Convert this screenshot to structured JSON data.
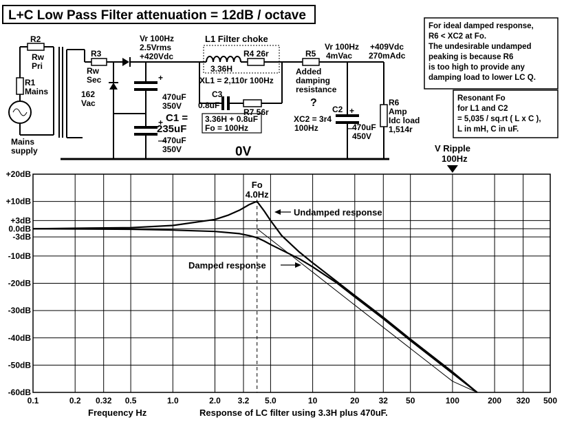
{
  "title": "L+C Low Pass Filter attenuation = 12dB / octave",
  "schematic": {
    "r2_name": "R2",
    "r2_line1": "Rw",
    "r2_line2": "Pri",
    "r1_name": "R1",
    "r1_label": "Mains",
    "supply_line1": "Mains",
    "supply_line2": "supply",
    "r3_name": "R3",
    "r3_line1": "Rw",
    "r3_line2": "Sec",
    "sec_voltage_line1": "162",
    "sec_voltage_line2": "Vac",
    "vr1_line1": "Vr 100Hz",
    "vr1_line2": "2.5Vrms",
    "vr1_line3": "+420Vdc",
    "cap_a_line1": "470uF",
    "cap_a_line2": "350V",
    "c1_line1": "C1 =",
    "c1_line2": "235uF",
    "cap_b_line1": "470uF",
    "cap_b_line2": "350V",
    "l1_label": "L1 Filter choke",
    "r4_label": "R4 26r",
    "l1_value": "3.36H",
    "xl1_label": "XL1 = 2,110r 100Hz",
    "c3_name": "C3",
    "c3_value": "0.8uF",
    "r7_label": "R7 56r",
    "resonance_line1": "3.36H + 0.8uF",
    "resonance_line2": "Fo = 100Hz",
    "r5_name": "R5",
    "added_line1": "Added",
    "added_line2": "damping",
    "added_line3": "resistance",
    "question": "?",
    "vr2_line1": "Vr 100Hz",
    "vr2_line2": "4mVac",
    "xc2_line1": "XC2 = 3r4",
    "xc2_line2": "100Hz",
    "c2_name": "C2",
    "c2_line1": "470uF",
    "c2_line2": "450V",
    "dc_line1": "+409Vdc",
    "dc_line2": "270mAdc",
    "r6_name": "R6",
    "r6_line1": "Amp",
    "r6_line2": "Idc load",
    "r6_line3": "1,514r",
    "zero_v": "0V"
  },
  "note1": [
    "For ideal damped response,",
    "R6 < XC2 at Fo.",
    "The undesirable undamped",
    "peaking is because R6",
    "is too high to  provide any",
    "damping load to lower LC  Q."
  ],
  "note2": [
    "Resonant Fo",
    "for L1 and C2",
    "= 5,035 / sq.rt ( L x C ),",
    "L in mH, C in uF."
  ],
  "ripple_line1": "V Ripple",
  "ripple_line2": "100Hz",
  "chart_data": {
    "type": "line",
    "x_scale": "log",
    "xlim": [
      0.1,
      500
    ],
    "ylim": [
      -60,
      20
    ],
    "x_ticks": [
      0.1,
      0.2,
      0.32,
      0.5,
      1.0,
      2.0,
      3.2,
      5.0,
      10,
      20,
      32,
      50,
      100,
      200,
      320,
      500
    ],
    "x_tick_labels": [
      "0.1",
      "0.2",
      "0.32",
      "0.5",
      "1.0",
      "2.0",
      "3.2",
      "5.0",
      "10",
      "20",
      "32",
      "50",
      "100",
      "200",
      "320",
      "500"
    ],
    "y_ticks": [
      20,
      10,
      3,
      0,
      -3,
      -10,
      -20,
      -30,
      -40,
      -50,
      -60
    ],
    "y_tick_labels": [
      "+20dB",
      "+10dB",
      "+3dB",
      "0.0dB",
      "-3dB",
      "-10dB",
      "-20dB",
      "-30dB",
      "-40dB",
      "-50dB",
      "-60dB"
    ],
    "xlabel": "Frequency Hz",
    "caption": "Response of LC filter using 3.3H plus 470uF.",
    "fo_hz": 4.0,
    "fo_label_line1": "Fo",
    "fo_label_line2": "4.0Hz",
    "ripple_marker_hz": 100,
    "series": [
      {
        "name": "Undamped response",
        "x": [
          0.1,
          0.5,
          1.0,
          2.0,
          2.5,
          3.0,
          3.5,
          3.8,
          4.0,
          4.5,
          5.0,
          6.0,
          8.0,
          10,
          15,
          20,
          32,
          50,
          100,
          150
        ],
        "y": [
          0,
          0.4,
          1.2,
          3.4,
          5.0,
          6.8,
          8.8,
          9.6,
          10,
          6.5,
          3.0,
          -2.5,
          -8.5,
          -12.5,
          -19.5,
          -24.5,
          -32.5,
          -40.5,
          -52.5,
          -60
        ]
      },
      {
        "name": "Damped response",
        "x": [
          0.1,
          0.5,
          1.0,
          2.0,
          3.0,
          3.5,
          4.0,
          4.5,
          5.0,
          6.0,
          8.0,
          10,
          15,
          20,
          32,
          50,
          100,
          150
        ],
        "y": [
          0,
          -0.2,
          -0.5,
          -1.0,
          -1.8,
          -2.5,
          -3.3,
          -4.5,
          -5.8,
          -7.8,
          -11,
          -14,
          -20,
          -25,
          -33,
          -41,
          -53,
          -60
        ]
      },
      {
        "name": "",
        "x": [
          4.0,
          10,
          20,
          50,
          100,
          150
        ],
        "y": [
          0,
          -15.9,
          -28,
          -43.9,
          -55.9,
          -60
        ]
      }
    ]
  }
}
